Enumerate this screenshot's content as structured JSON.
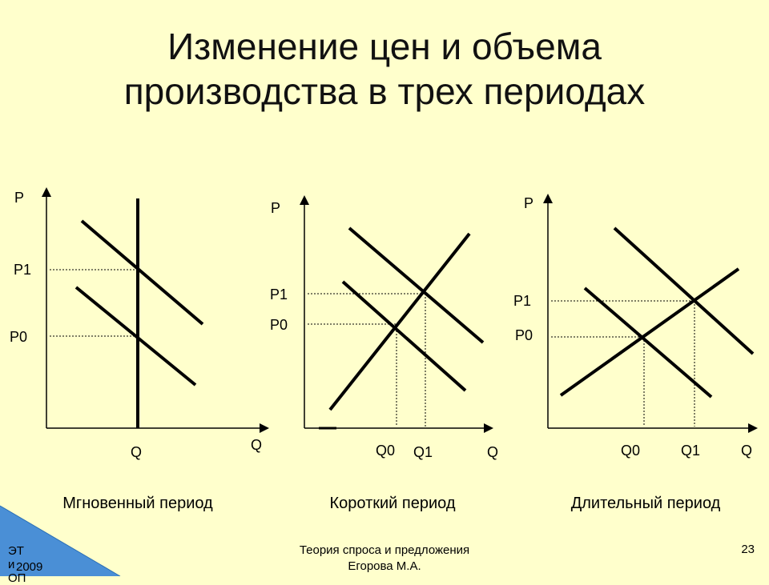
{
  "title": {
    "line1": "Изменение цен и объема",
    "line2": "производства в трех периодах"
  },
  "graphs": [
    {
      "caption": "Мгновенный период",
      "labels": {
        "p_axis": "P",
        "q_axis": "Q",
        "p1": "P1",
        "p0": "P0",
        "q": "Q"
      }
    },
    {
      "caption": "Короткий период",
      "labels": {
        "p_axis": "P",
        "q_axis": "Q",
        "p1": "P1",
        "p0": "P0",
        "q0": "Q0",
        "q1": "Q1"
      }
    },
    {
      "caption": "Длительный период",
      "labels": {
        "p_axis": "P",
        "q_axis": "Q",
        "p1": "P1",
        "p0": "P0",
        "q0": "Q0",
        "q1": "Q1"
      }
    }
  ],
  "footer": {
    "corner_line1": "ЭТ и ОП",
    "corner_line2": "2009",
    "center_line1": "Теория спроса и предложения",
    "center_line2": "Егорова М.А.",
    "page_number": "23"
  },
  "colors": {
    "background": "#ffffcc",
    "corner": "#4a8fd6",
    "lines": "#000000"
  }
}
